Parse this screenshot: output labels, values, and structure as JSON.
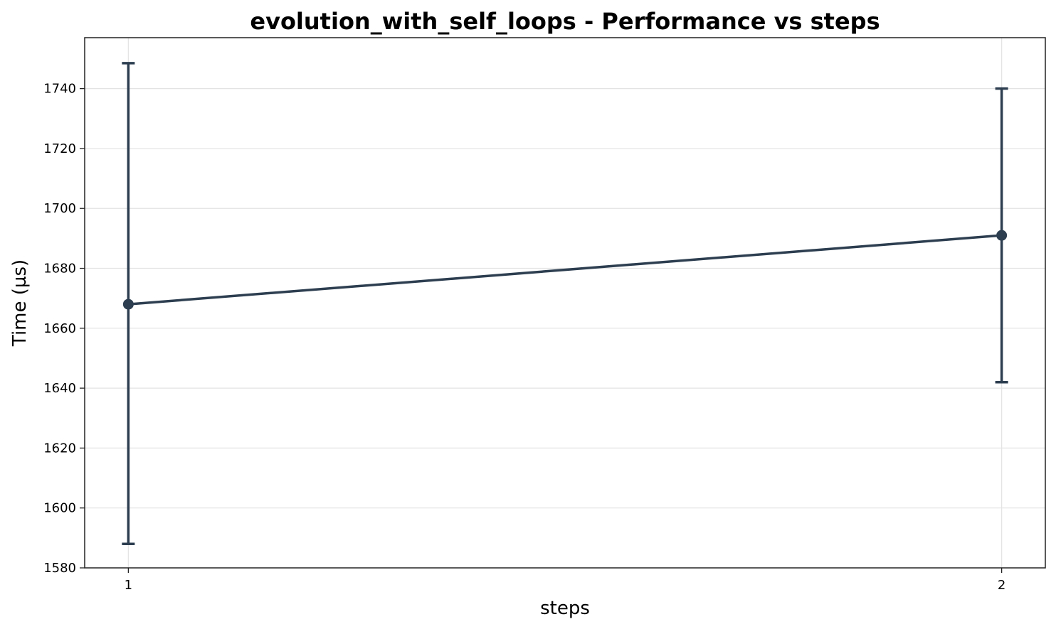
{
  "chart_data": {
    "type": "line",
    "title": "evolution_with_self_loops - Performance vs steps",
    "xlabel": "steps",
    "ylabel": "Time (µs)",
    "x": [
      1,
      2
    ],
    "x_tick_labels": [
      "1",
      "2"
    ],
    "y_ticks": [
      1580,
      1600,
      1620,
      1640,
      1660,
      1680,
      1700,
      1720,
      1740
    ],
    "y_tick_labels": [
      "1580",
      "1600",
      "1620",
      "1640",
      "1660",
      "1680",
      "1700",
      "1720",
      "1740"
    ],
    "xlim": [
      0.95,
      2.05
    ],
    "ylim": [
      1580,
      1757
    ],
    "grid": true,
    "series": [
      {
        "values": [
          1668,
          1691
        ],
        "error_low": [
          1588,
          1642
        ],
        "error_high": [
          1748.5,
          1740
        ],
        "color": "#2c3e50"
      }
    ]
  }
}
